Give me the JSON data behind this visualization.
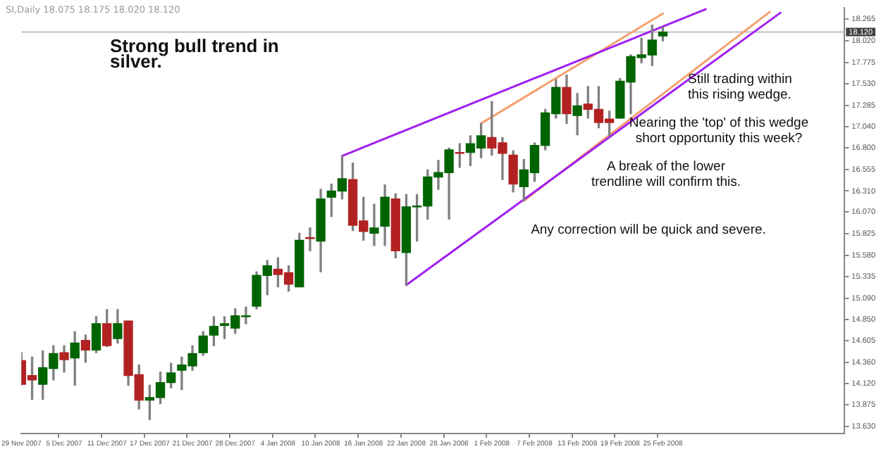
{
  "chart_data": {
    "type": "candlestick",
    "title": "SI,Daily 18.075 18.175 18.020 18.120",
    "categories": [
      "29 Nov 2007",
      null,
      null,
      null,
      "5 Dec 2007",
      null,
      null,
      null,
      "11 Dec 2007",
      null,
      null,
      null,
      "17 Dec 2007",
      null,
      null,
      null,
      "21 Dec 2007",
      null,
      null,
      null,
      "28 Dec 2007",
      null,
      null,
      null,
      "4 Jan 2008",
      null,
      null,
      null,
      "10 Jan 2008",
      null,
      null,
      null,
      "16 Jan 2008",
      null,
      null,
      null,
      "22 Jan 2008",
      null,
      null,
      null,
      "28 Jan 2008",
      null,
      null,
      null,
      "1 Feb 2008",
      null,
      null,
      null,
      "7 Feb 2008",
      null,
      null,
      null,
      "13 Feb 2008",
      null,
      null,
      null,
      "19 Feb 2008",
      null,
      null,
      null,
      "25 Feb 2008",
      null,
      null,
      null,
      null,
      null,
      null,
      null,
      null,
      null,
      null,
      null,
      null,
      null,
      null,
      null,
      null,
      null
    ],
    "ohlc": [
      [
        14.38,
        14.47,
        14.1,
        14.11
      ],
      [
        14.21,
        14.42,
        13.94,
        14.16
      ],
      [
        14.11,
        14.49,
        13.94,
        14.3
      ],
      [
        14.29,
        14.55,
        14.16,
        14.46
      ],
      [
        14.47,
        14.55,
        14.25,
        14.39
      ],
      [
        14.41,
        14.71,
        14.1,
        14.58
      ],
      [
        14.61,
        14.67,
        14.36,
        14.5
      ],
      [
        14.5,
        14.88,
        14.47,
        14.8
      ],
      [
        14.8,
        14.96,
        14.54,
        14.55
      ],
      [
        14.63,
        14.96,
        14.58,
        14.8
      ],
      [
        14.83,
        14.83,
        14.1,
        14.21
      ],
      [
        14.22,
        14.33,
        13.83,
        13.93
      ],
      [
        13.93,
        14.1,
        13.71,
        13.96
      ],
      [
        13.96,
        14.25,
        13.89,
        14.13
      ],
      [
        14.13,
        14.35,
        14.07,
        14.24
      ],
      [
        14.27,
        14.42,
        14.05,
        14.33
      ],
      [
        14.32,
        14.55,
        14.27,
        14.46
      ],
      [
        14.47,
        14.71,
        14.44,
        14.66
      ],
      [
        14.67,
        14.88,
        14.55,
        14.77
      ],
      [
        14.78,
        14.88,
        14.63,
        14.8
      ],
      [
        14.75,
        14.97,
        14.69,
        14.89
      ],
      [
        14.88,
        14.99,
        14.8,
        14.89
      ],
      [
        15.0,
        15.39,
        14.97,
        15.35
      ],
      [
        15.35,
        15.52,
        15.13,
        15.46
      ],
      [
        15.42,
        15.55,
        15.22,
        15.36
      ],
      [
        15.38,
        15.46,
        15.17,
        15.25
      ],
      [
        15.22,
        15.83,
        15.22,
        15.75
      ],
      [
        15.78,
        15.89,
        15.63,
        15.77
      ],
      [
        15.74,
        16.33,
        15.39,
        16.22
      ],
      [
        16.24,
        16.39,
        16.02,
        16.31
      ],
      [
        16.31,
        16.71,
        16.22,
        16.45
      ],
      [
        16.44,
        16.63,
        15.86,
        15.92
      ],
      [
        15.97,
        16.24,
        15.75,
        15.85
      ],
      [
        15.83,
        16.16,
        15.69,
        15.89
      ],
      [
        15.91,
        16.38,
        15.69,
        16.24
      ],
      [
        16.22,
        16.28,
        15.55,
        15.63
      ],
      [
        15.61,
        16.27,
        15.24,
        16.13
      ],
      [
        16.13,
        16.27,
        15.74,
        16.14
      ],
      [
        16.14,
        16.55,
        15.99,
        16.47
      ],
      [
        16.47,
        16.66,
        16.33,
        16.52
      ],
      [
        16.52,
        16.8,
        15.99,
        16.78
      ],
      [
        16.75,
        16.85,
        16.58,
        16.74
      ],
      [
        16.75,
        16.94,
        16.6,
        16.85
      ],
      [
        16.8,
        17.08,
        16.69,
        16.94
      ],
      [
        16.92,
        17.33,
        16.72,
        16.8
      ],
      [
        16.86,
        16.92,
        16.44,
        16.74
      ],
      [
        16.72,
        16.77,
        16.3,
        16.39
      ],
      [
        16.36,
        16.67,
        16.2,
        16.55
      ],
      [
        16.52,
        16.86,
        16.42,
        16.83
      ],
      [
        16.83,
        17.24,
        16.78,
        17.2
      ],
      [
        17.19,
        17.58,
        17.14,
        17.49
      ],
      [
        17.49,
        17.63,
        17.08,
        17.19
      ],
      [
        17.17,
        17.42,
        16.95,
        17.28
      ],
      [
        17.3,
        17.5,
        17.14,
        17.24
      ],
      [
        17.24,
        17.5,
        17.03,
        17.09
      ],
      [
        17.13,
        17.22,
        16.94,
        17.09
      ],
      [
        17.14,
        17.59,
        17.14,
        17.56
      ],
      [
        17.55,
        17.86,
        17.19,
        17.84
      ],
      [
        17.83,
        18.05,
        17.77,
        17.86
      ],
      [
        17.86,
        18.2,
        17.74,
        18.03
      ],
      [
        18.075,
        18.175,
        18.02,
        18.12
      ],
      null,
      null,
      null,
      null,
      null,
      null,
      null,
      null,
      null,
      null,
      null,
      null,
      null,
      null,
      null,
      null,
      null
    ],
    "colors": [
      "#b22222",
      "#b22222",
      "#006400",
      "#006400",
      "#b22222",
      "#006400",
      "#b22222",
      "#006400",
      "#b22222",
      "#006400",
      "#b22222",
      "#b22222",
      "#006400",
      "#006400",
      "#006400",
      "#006400",
      "#006400",
      "#006400",
      "#006400",
      "#006400",
      "#006400",
      "#006400",
      "#006400",
      "#006400",
      "#b22222",
      "#b22222",
      "#006400",
      "#b22222",
      "#006400",
      "#006400",
      "#006400",
      "#b22222",
      "#b22222",
      "#006400",
      "#006400",
      "#b22222",
      "#006400",
      "#006400",
      "#006400",
      "#006400",
      "#006400",
      "#b22222",
      "#006400",
      "#006400",
      "#b22222",
      "#b22222",
      "#b22222",
      "#006400",
      "#006400",
      "#006400",
      "#006400",
      "#b22222",
      "#006400",
      "#b22222",
      "#b22222",
      "#b22222",
      "#006400",
      "#006400",
      "#006400",
      "#006400",
      "#006400",
      null,
      null,
      null,
      null,
      null,
      null,
      null,
      null,
      null,
      null,
      null,
      null,
      null,
      null,
      null,
      null,
      null
    ],
    "series": [
      {
        "type": "line",
        "color": "#a020f0",
        "values": [
          null,
          null,
          null,
          null,
          null,
          null,
          null,
          null,
          null,
          null,
          null,
          null,
          null,
          null,
          null,
          null,
          null,
          null,
          null,
          null,
          null,
          null,
          null,
          null,
          null,
          null,
          null,
          null,
          null,
          null,
          16.71,
          null,
          null,
          null,
          null,
          null,
          null,
          null,
          null,
          null,
          null,
          null,
          null,
          null,
          null,
          null,
          null,
          null,
          null,
          null,
          null,
          null,
          null,
          null,
          null,
          null,
          null,
          null,
          null,
          null,
          null,
          null,
          null,
          null,
          18.38,
          null,
          null,
          null,
          null,
          null,
          null,
          null,
          null,
          null,
          null,
          null,
          null,
          null
        ]
      },
      {
        "type": "line",
        "color": "#a020f0",
        "values": [
          null,
          null,
          null,
          null,
          null,
          null,
          null,
          null,
          null,
          null,
          null,
          null,
          null,
          null,
          null,
          null,
          null,
          null,
          null,
          null,
          null,
          null,
          null,
          null,
          null,
          null,
          null,
          null,
          null,
          null,
          null,
          null,
          null,
          null,
          null,
          null,
          15.24,
          null,
          null,
          null,
          null,
          null,
          null,
          null,
          null,
          null,
          null,
          null,
          null,
          null,
          null,
          null,
          null,
          null,
          null,
          null,
          null,
          null,
          null,
          null,
          null,
          null,
          null,
          null,
          null,
          null,
          null,
          null,
          null,
          null,
          null,
          18.34,
          null,
          null,
          null,
          null,
          null,
          null
        ]
      },
      {
        "type": "line",
        "color": "#f4a070",
        "values": [
          null,
          null,
          null,
          null,
          null,
          null,
          null,
          null,
          null,
          null,
          null,
          null,
          null,
          null,
          null,
          null,
          null,
          null,
          null,
          null,
          null,
          null,
          null,
          null,
          null,
          null,
          null,
          null,
          null,
          null,
          null,
          null,
          null,
          null,
          null,
          null,
          null,
          null,
          null,
          null,
          null,
          null,
          null,
          17.08,
          null,
          null,
          null,
          null,
          null,
          null,
          null,
          null,
          null,
          null,
          null,
          null,
          null,
          null,
          null,
          null,
          18.33,
          null,
          null,
          null,
          null,
          null,
          null,
          null,
          null,
          null,
          null,
          null,
          null,
          null,
          null,
          null,
          null,
          null
        ]
      },
      {
        "type": "line",
        "color": "#f4a070",
        "values": [
          null,
          null,
          null,
          null,
          null,
          null,
          null,
          null,
          null,
          null,
          null,
          null,
          null,
          null,
          null,
          null,
          null,
          null,
          null,
          null,
          null,
          null,
          null,
          null,
          null,
          null,
          null,
          null,
          null,
          null,
          null,
          null,
          null,
          null,
          null,
          null,
          null,
          null,
          null,
          null,
          null,
          null,
          null,
          null,
          null,
          null,
          null,
          16.2,
          null,
          null,
          null,
          null,
          null,
          null,
          null,
          null,
          null,
          null,
          null,
          null,
          null,
          null,
          null,
          null,
          null,
          null,
          null,
          null,
          null,
          null,
          18.35,
          null,
          null,
          null,
          null,
          null,
          null,
          null
        ]
      }
    ],
    "ylim": [
      13.55,
      18.4
    ],
    "yticks": [
      {
        "value": 18.265,
        "label": "18.265"
      },
      {
        "value": 18.02,
        "label": "18.020"
      },
      {
        "value": 17.775,
        "label": "17.775"
      },
      {
        "value": 17.53,
        "label": "17.530"
      },
      {
        "value": 17.285,
        "label": "17.285"
      },
      {
        "value": 17.04,
        "label": "17.040"
      },
      {
        "value": 16.8,
        "label": "16.800"
      },
      {
        "value": 16.555,
        "label": "16.555"
      },
      {
        "value": 16.31,
        "label": "16.310"
      },
      {
        "value": 16.07,
        "label": "16.070"
      },
      {
        "value": 15.825,
        "label": "15.825"
      },
      {
        "value": 15.58,
        "label": "15.580"
      },
      {
        "value": 15.335,
        "label": "15.335"
      },
      {
        "value": 15.09,
        "label": "15.090"
      },
      {
        "value": 14.85,
        "label": "14.850"
      },
      {
        "value": 14.605,
        "label": "14.605"
      },
      {
        "value": 14.36,
        "label": "14.360"
      },
      {
        "value": 14.12,
        "label": "14.120"
      },
      {
        "value": 13.875,
        "label": "13.875"
      },
      {
        "value": 13.63,
        "label": "13.630"
      }
    ],
    "ref_lines": [
      {
        "axis": "y",
        "value": 18.12,
        "label": "18.120",
        "color": "#c0c0c0"
      }
    ],
    "annotations": [
      "Strong bull trend in silver.",
      "Still trading within this rising wedge.",
      "Nearing the 'top' of this wedge short opportunity this week?",
      "A break of the lower trendline will confirm this.",
      "Any correction will be quick and severe."
    ],
    "grid": false,
    "marker": "none",
    "line_style": "solid"
  }
}
